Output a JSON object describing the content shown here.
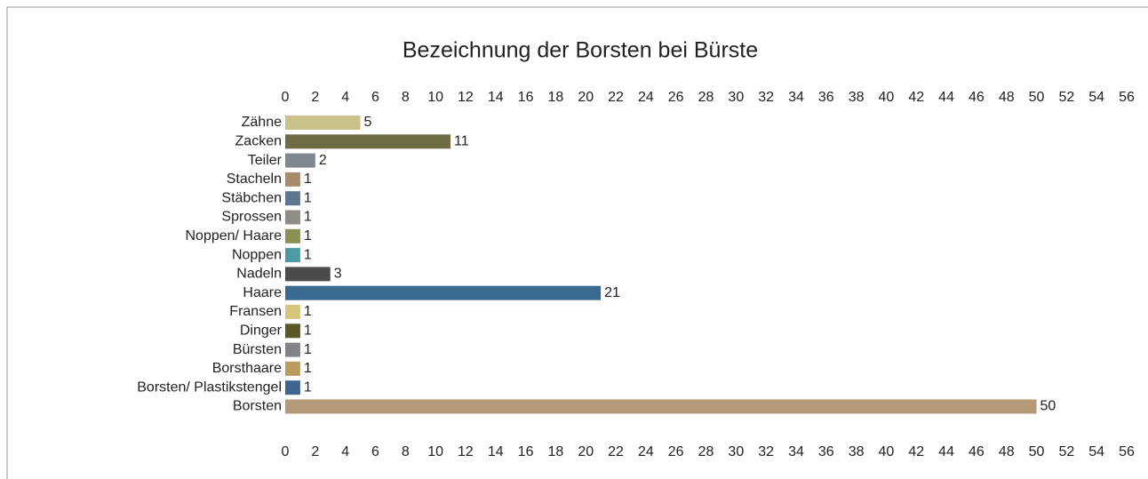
{
  "chart_data": {
    "type": "barh",
    "title": "Bezeichnung der Borsten bei Bürste",
    "categories": [
      "Zähne",
      "Zacken",
      "Teiler",
      "Stacheln",
      "Stäbchen",
      "Sprossen",
      "Noppen/ Haare",
      "Noppen",
      "Nadeln",
      "Haare",
      "Fransen",
      "Dinger",
      "Bürsten",
      "Borsthaare",
      "Borsten/ Plastikstengel",
      "Borsten"
    ],
    "values": [
      5,
      11,
      2,
      1,
      1,
      1,
      1,
      1,
      3,
      21,
      1,
      1,
      1,
      1,
      1,
      50
    ],
    "colors": [
      "#c9c08a",
      "#6f6c44",
      "#7f8790",
      "#a88c6a",
      "#5e7791",
      "#8f8d86",
      "#8b8f52",
      "#4b9aa6",
      "#4a4b4d",
      "#3a6a8f",
      "#d6c67c",
      "#5b5727",
      "#808488",
      "#bb9a5f",
      "#3f6691",
      "#b59a78"
    ],
    "xlim": [
      0,
      56
    ],
    "xticks": [
      0,
      2,
      4,
      6,
      8,
      10,
      12,
      14,
      16,
      18,
      20,
      22,
      24,
      26,
      28,
      30,
      32,
      34,
      36,
      38,
      40,
      42,
      44,
      46,
      48,
      50,
      52,
      54,
      56
    ],
    "grid": false
  }
}
